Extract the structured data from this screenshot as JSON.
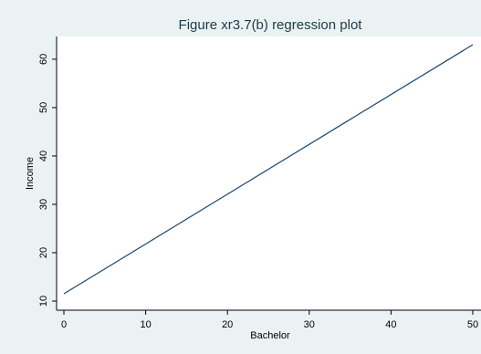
{
  "chart_data": {
    "type": "line",
    "title": "Figure xr3.7(b) regression plot",
    "xlabel": "Bachelor",
    "ylabel": "Income",
    "xlim": [
      0,
      50
    ],
    "ylim": [
      10,
      63
    ],
    "xticks": [
      0,
      10,
      20,
      30,
      40,
      50
    ],
    "yticks": [
      10,
      20,
      30,
      40,
      50,
      60
    ],
    "grid": false,
    "series": [
      {
        "x": [
          0,
          50
        ],
        "y": [
          11.5,
          63.0
        ],
        "color": "#1a476f"
      }
    ]
  },
  "colors": {
    "background": "#eaf2f3",
    "plot_area": "#ffffff",
    "title": "#1e3a4a"
  }
}
